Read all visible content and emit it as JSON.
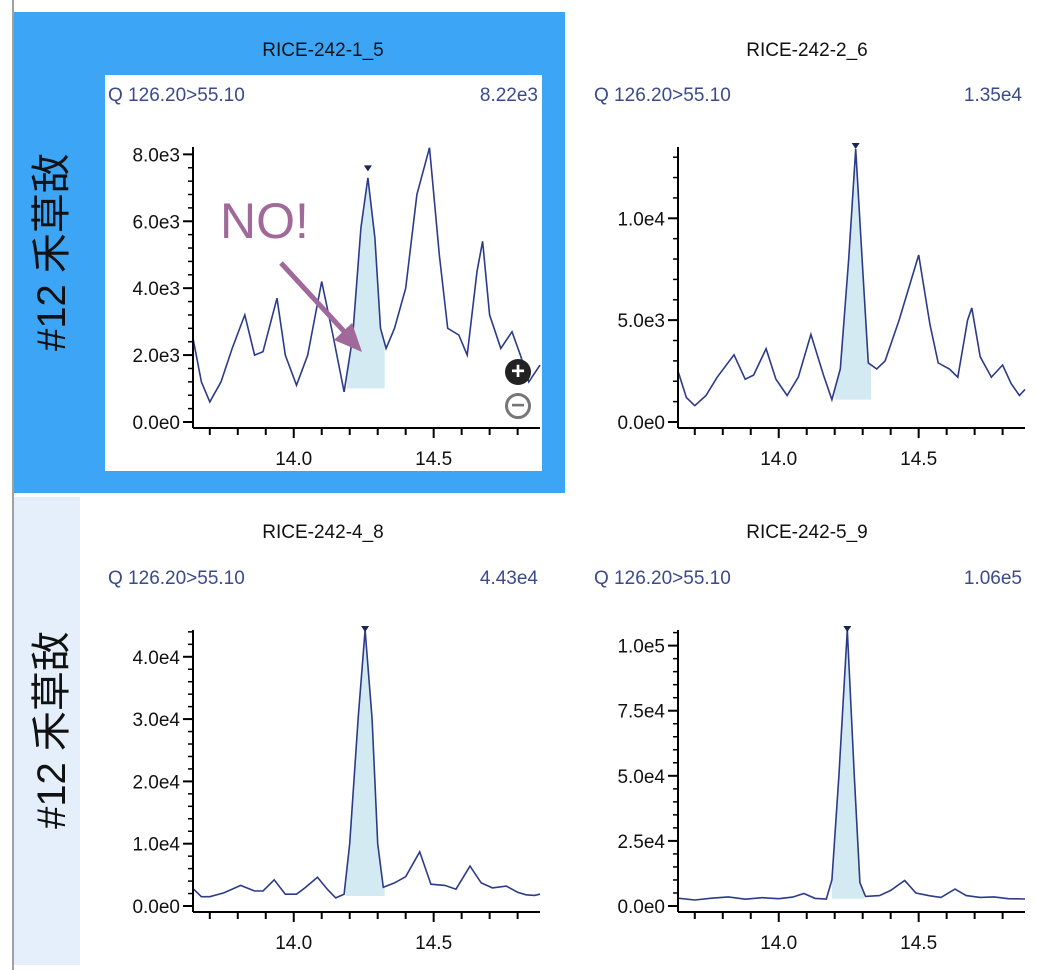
{
  "rows": [
    {
      "label": "#12 禾草敌",
      "selected": true
    },
    {
      "label": "#12 禾草敌",
      "selected": false
    }
  ],
  "annotation": {
    "text": "NO!",
    "color": "#a0699a"
  },
  "zoom_in_icon": "plus-circle-icon",
  "zoom_out_icon": "minus-circle-icon",
  "colors": {
    "selection": "#3ca5f5",
    "trace": "#2c3a8a",
    "fill": "#d4eaf3",
    "row_label_bg": "#e4effb"
  },
  "chart_data": [
    {
      "type": "line",
      "title": "RICE-242-1_5",
      "transition": "Q 126.20>55.10",
      "max_label": "8.22e3",
      "xlim": [
        13.64,
        14.88
      ],
      "ylim": [
        0,
        8220
      ],
      "xticks": [
        13.7,
        13.8,
        13.9,
        14.0,
        14.1,
        14.2,
        14.3,
        14.4,
        14.5,
        14.6,
        14.7,
        14.8
      ],
      "xtick_labels": {
        "14.0": "14.0",
        "14.5": "14.5"
      },
      "yticks": [
        0,
        2000,
        4000,
        6000,
        8000
      ],
      "ytick_labels": [
        "0.0e0",
        "2.0e3",
        "4.0e3",
        "6.0e3",
        "8.0e3"
      ],
      "yminor": 400,
      "points": [
        [
          13.64,
          2500
        ],
        [
          13.67,
          1200
        ],
        [
          13.7,
          600
        ],
        [
          13.74,
          1200
        ],
        [
          13.78,
          2200
        ],
        [
          13.825,
          3200
        ],
        [
          13.86,
          2000
        ],
        [
          13.89,
          2100
        ],
        [
          13.94,
          3700
        ],
        [
          13.97,
          2000
        ],
        [
          14.01,
          1100
        ],
        [
          14.05,
          2000
        ],
        [
          14.1,
          4200
        ],
        [
          14.14,
          2600
        ],
        [
          14.18,
          900
        ],
        [
          14.21,
          2500
        ],
        [
          14.24,
          5800
        ],
        [
          14.265,
          7300
        ],
        [
          14.29,
          5500
        ],
        [
          14.31,
          2800
        ],
        [
          14.33,
          2200
        ],
        [
          14.36,
          2800
        ],
        [
          14.4,
          4000
        ],
        [
          14.44,
          6800
        ],
        [
          14.485,
          8200
        ],
        [
          14.52,
          5000
        ],
        [
          14.55,
          2800
        ],
        [
          14.59,
          2600
        ],
        [
          14.62,
          2000
        ],
        [
          14.655,
          4500
        ],
        [
          14.675,
          5400
        ],
        [
          14.7,
          3200
        ],
        [
          14.74,
          2200
        ],
        [
          14.78,
          2700
        ],
        [
          14.81,
          2000
        ],
        [
          14.84,
          1200
        ],
        [
          14.88,
          1700
        ]
      ],
      "integration": {
        "start": 14.19,
        "end": 14.325,
        "baseline": 1000
      },
      "apex": [
        14.265,
        7550
      ]
    },
    {
      "type": "line",
      "title": "RICE-242-2_6",
      "transition": "Q 126.20>55.10",
      "max_label": "1.35e4",
      "xlim": [
        13.64,
        14.88
      ],
      "ylim": [
        0,
        13500
      ],
      "xticks": [
        13.7,
        13.8,
        13.9,
        14.0,
        14.1,
        14.2,
        14.3,
        14.4,
        14.5,
        14.6,
        14.7,
        14.8
      ],
      "xtick_labels": {
        "14.0": "14.0",
        "14.5": "14.5"
      },
      "yticks": [
        0,
        5000,
        10000
      ],
      "ytick_labels": [
        "0.0e0",
        "5.0e3",
        "1.0e4"
      ],
      "yminor": 1000,
      "points": [
        [
          13.64,
          2500
        ],
        [
          13.67,
          1200
        ],
        [
          13.7,
          800
        ],
        [
          13.74,
          1300
        ],
        [
          13.78,
          2200
        ],
        [
          13.84,
          3300
        ],
        [
          13.88,
          2100
        ],
        [
          13.91,
          2300
        ],
        [
          13.955,
          3600
        ],
        [
          13.99,
          2100
        ],
        [
          14.03,
          1300
        ],
        [
          14.07,
          2200
        ],
        [
          14.115,
          4300
        ],
        [
          14.16,
          2300
        ],
        [
          14.19,
          1100
        ],
        [
          14.22,
          2600
        ],
        [
          14.25,
          8000
        ],
        [
          14.275,
          13400
        ],
        [
          14.3,
          7500
        ],
        [
          14.32,
          2900
        ],
        [
          14.35,
          2600
        ],
        [
          14.38,
          3000
        ],
        [
          14.43,
          5000
        ],
        [
          14.5,
          8200
        ],
        [
          14.54,
          4800
        ],
        [
          14.57,
          2900
        ],
        [
          14.61,
          2600
        ],
        [
          14.64,
          2200
        ],
        [
          14.675,
          5000
        ],
        [
          14.69,
          5600
        ],
        [
          14.72,
          3200
        ],
        [
          14.76,
          2200
        ],
        [
          14.8,
          2800
        ],
        [
          14.83,
          1900
        ],
        [
          14.86,
          1300
        ],
        [
          14.88,
          1600
        ]
      ],
      "integration": {
        "start": 14.2,
        "end": 14.33,
        "baseline": 1100
      },
      "apex": [
        14.275,
        13500
      ]
    },
    {
      "type": "line",
      "title": "RICE-242-4_8",
      "transition": "Q 126.20>55.10",
      "max_label": "4.43e4",
      "xlim": [
        13.64,
        14.88
      ],
      "ylim": [
        0,
        44300
      ],
      "xticks": [
        13.7,
        13.8,
        13.9,
        14.0,
        14.1,
        14.2,
        14.3,
        14.4,
        14.5,
        14.6,
        14.7,
        14.8
      ],
      "xtick_labels": {
        "14.0": "14.0",
        "14.5": "14.5"
      },
      "yticks": [
        0,
        10000,
        20000,
        30000,
        40000
      ],
      "ytick_labels": [
        "0.0e0",
        "1.0e4",
        "2.0e4",
        "3.0e4",
        "4.0e4"
      ],
      "yminor": 2000,
      "points": [
        [
          13.64,
          2800
        ],
        [
          13.67,
          1500
        ],
        [
          13.7,
          1500
        ],
        [
          13.75,
          2100
        ],
        [
          13.81,
          3300
        ],
        [
          13.86,
          2400
        ],
        [
          13.89,
          2400
        ],
        [
          13.93,
          4200
        ],
        [
          13.97,
          1900
        ],
        [
          14.01,
          1900
        ],
        [
          14.04,
          2900
        ],
        [
          14.085,
          4600
        ],
        [
          14.12,
          2700
        ],
        [
          14.15,
          1300
        ],
        [
          14.18,
          1900
        ],
        [
          14.2,
          10000
        ],
        [
          14.23,
          30000
        ],
        [
          14.255,
          44300
        ],
        [
          14.28,
          30000
        ],
        [
          14.3,
          10000
        ],
        [
          14.32,
          3000
        ],
        [
          14.36,
          3700
        ],
        [
          14.4,
          4700
        ],
        [
          14.45,
          8700
        ],
        [
          14.49,
          3500
        ],
        [
          14.54,
          3300
        ],
        [
          14.58,
          2700
        ],
        [
          14.63,
          6400
        ],
        [
          14.67,
          3700
        ],
        [
          14.71,
          2900
        ],
        [
          14.76,
          3200
        ],
        [
          14.8,
          2200
        ],
        [
          14.83,
          1800
        ],
        [
          14.86,
          1700
        ],
        [
          14.88,
          1900
        ]
      ],
      "integration": {
        "start": 14.185,
        "end": 14.325,
        "baseline": 1600
      },
      "apex": [
        14.255,
        44300
      ]
    },
    {
      "type": "line",
      "title": "RICE-242-5_9",
      "transition": "Q 126.20>55.10",
      "max_label": "1.06e5",
      "xlim": [
        13.64,
        14.88
      ],
      "ylim": [
        0,
        106000
      ],
      "xticks": [
        13.7,
        13.8,
        13.9,
        14.0,
        14.1,
        14.2,
        14.3,
        14.4,
        14.5,
        14.6,
        14.7,
        14.8
      ],
      "xtick_labels": {
        "14.0": "14.0",
        "14.5": "14.5"
      },
      "yticks": [
        0,
        25000,
        50000,
        75000,
        100000
      ],
      "ytick_labels": [
        "0.0e0",
        "2.5e4",
        "5.0e4",
        "7.5e4",
        "1.0e5"
      ],
      "yminor": 5000,
      "points": [
        [
          13.64,
          3000
        ],
        [
          13.7,
          2300
        ],
        [
          13.76,
          3000
        ],
        [
          13.82,
          3500
        ],
        [
          13.88,
          2600
        ],
        [
          13.94,
          3200
        ],
        [
          14.0,
          2800
        ],
        [
          14.05,
          3400
        ],
        [
          14.09,
          4800
        ],
        [
          14.13,
          2900
        ],
        [
          14.17,
          2700
        ],
        [
          14.19,
          10000
        ],
        [
          14.215,
          50000
        ],
        [
          14.245,
          106000
        ],
        [
          14.27,
          50000
        ],
        [
          14.29,
          9000
        ],
        [
          14.31,
          3700
        ],
        [
          14.36,
          4000
        ],
        [
          14.4,
          6000
        ],
        [
          14.45,
          9800
        ],
        [
          14.49,
          5000
        ],
        [
          14.54,
          3900
        ],
        [
          14.58,
          3300
        ],
        [
          14.63,
          6500
        ],
        [
          14.67,
          4000
        ],
        [
          14.72,
          3300
        ],
        [
          14.77,
          3500
        ],
        [
          14.82,
          2800
        ],
        [
          14.88,
          2700
        ]
      ],
      "integration": {
        "start": 14.19,
        "end": 14.305,
        "baseline": 2800
      },
      "apex": [
        14.245,
        106000
      ]
    }
  ]
}
